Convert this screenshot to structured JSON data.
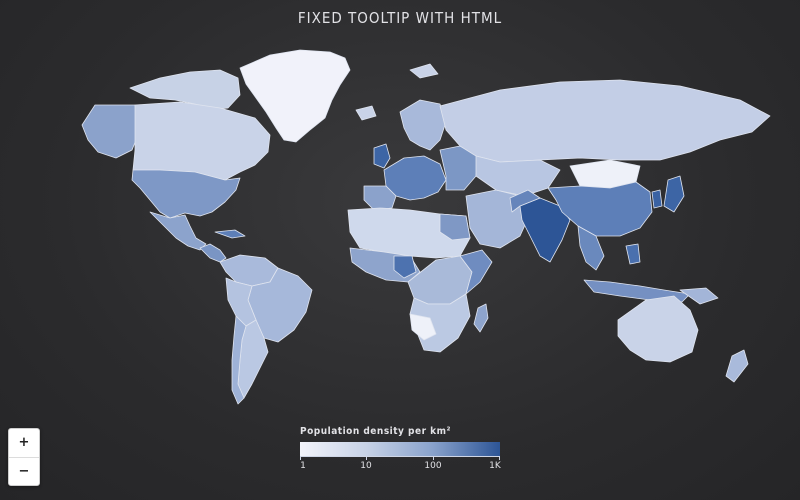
{
  "title": "FIXED TOOLTIP WITH HTML",
  "map": {
    "type": "choropleth",
    "colors": {
      "background": "#2b2b2d",
      "border": "#dfe4ef",
      "low": "#f3f4fb",
      "mid1": "#c7d2e6",
      "mid2": "#8aa3cc",
      "high": "#2d5596"
    }
  },
  "zoom": {
    "in_label": "+",
    "out_label": "−"
  },
  "legend": {
    "title": "Population density per km²",
    "ticks": [
      {
        "label": "1"
      },
      {
        "label": "10"
      },
      {
        "label": "100"
      },
      {
        "label": "1K"
      }
    ]
  }
}
